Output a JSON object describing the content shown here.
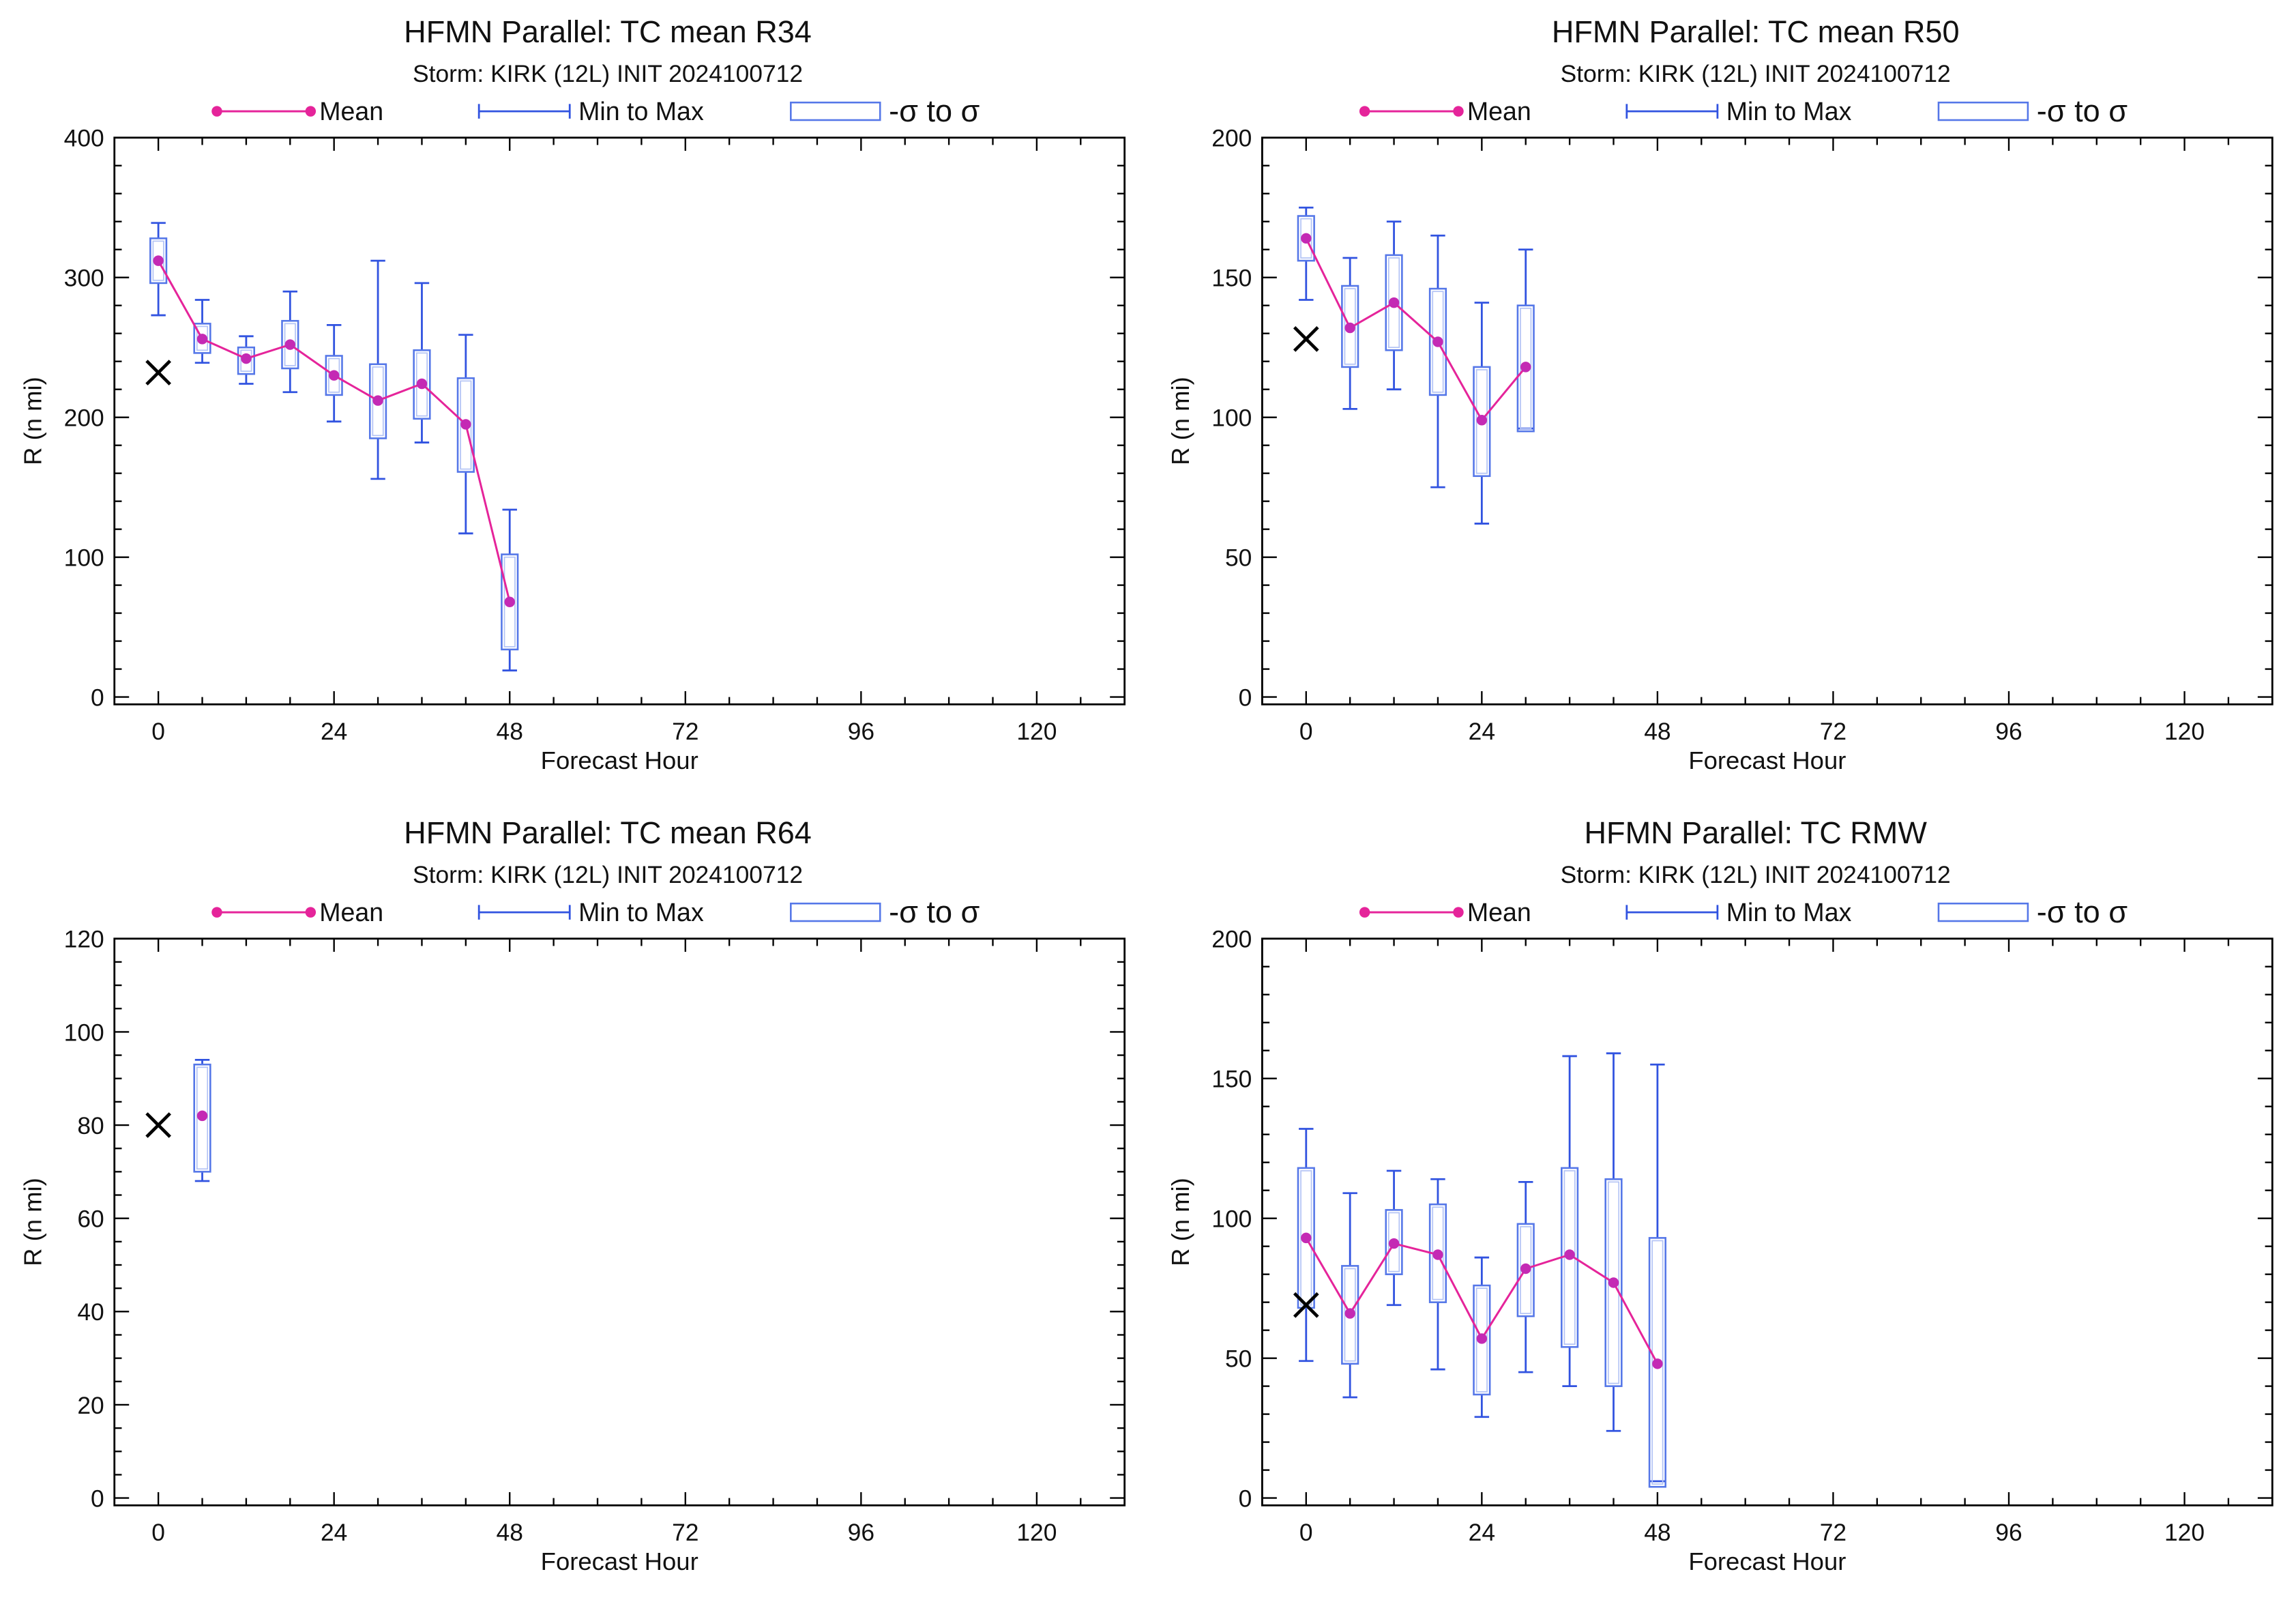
{
  "colors": {
    "mean_line": "#e5249a",
    "mean_point": "#c42ab4",
    "min_max": "#3153e0",
    "sigma_box": "#5577e8",
    "sigma_box_inner": "#b3c3f5",
    "observed": "#000000",
    "frame": "#000000"
  },
  "chart_data": [
    {
      "type": "line",
      "title": "HFMN Parallel: TC mean R34",
      "subtitle": "Storm: KIRK (12L) INIT 2024100712",
      "xlabel": "Forecast Hour",
      "ylabel": "R (n mi)",
      "xlim": [
        -6,
        132
      ],
      "ylim": [
        0,
        400
      ],
      "xticks": [
        0,
        24,
        48,
        72,
        96,
        120
      ],
      "yticks": [
        0,
        100,
        200,
        300,
        400
      ],
      "grid": false,
      "legend_position": "top",
      "x": [
        0,
        6,
        12,
        18,
        24,
        30,
        36,
        42,
        48
      ],
      "series": [
        {
          "name": "Mean",
          "values": [
            312,
            256,
            242,
            252,
            230,
            212,
            224,
            195,
            68
          ]
        },
        {
          "name": "Min to Max",
          "low": [
            273,
            239,
            224,
            218,
            197,
            156,
            182,
            117,
            19
          ],
          "high": [
            339,
            284,
            258,
            290,
            266,
            312,
            296,
            259,
            134
          ]
        },
        {
          "name": "-σ to σ",
          "low": [
            296,
            246,
            231,
            235,
            216,
            185,
            199,
            161,
            34
          ],
          "high": [
            328,
            267,
            250,
            269,
            244,
            238,
            248,
            228,
            102
          ]
        }
      ],
      "markers": {
        "symbol": "x",
        "x": [
          0
        ],
        "values": [
          232
        ]
      }
    },
    {
      "type": "line",
      "title": "HFMN Parallel: TC mean R50",
      "subtitle": "Storm: KIRK (12L) INIT 2024100712",
      "xlabel": "Forecast Hour",
      "ylabel": "R (n mi)",
      "xlim": [
        -6,
        132
      ],
      "ylim": [
        0,
        200
      ],
      "xticks": [
        0,
        24,
        48,
        72,
        96,
        120
      ],
      "yticks": [
        0,
        50,
        100,
        150,
        200
      ],
      "grid": false,
      "legend_position": "top",
      "x": [
        0,
        6,
        12,
        18,
        24,
        30
      ],
      "series": [
        {
          "name": "Mean",
          "values": [
            164,
            132,
            141,
            127,
            99,
            118
          ]
        },
        {
          "name": "Min to Max",
          "low": [
            142,
            103,
            110,
            75,
            62,
            96
          ],
          "high": [
            175,
            157,
            170,
            165,
            141,
            160
          ]
        },
        {
          "name": "-σ to σ",
          "low": [
            156,
            118,
            124,
            108,
            79,
            95
          ],
          "high": [
            172,
            147,
            158,
            146,
            118,
            140
          ]
        }
      ],
      "markers": {
        "symbol": "x",
        "x": [
          0
        ],
        "values": [
          128
        ]
      }
    },
    {
      "type": "line",
      "title": "HFMN Parallel: TC mean R64",
      "subtitle": "Storm: KIRK (12L) INIT 2024100712",
      "xlabel": "Forecast Hour",
      "ylabel": "R (n mi)",
      "xlim": [
        -6,
        132
      ],
      "ylim": [
        0,
        120
      ],
      "xticks": [
        0,
        24,
        48,
        72,
        96,
        120
      ],
      "yticks": [
        0,
        20,
        40,
        60,
        80,
        100,
        120
      ],
      "grid": false,
      "legend_position": "top",
      "x": [
        6
      ],
      "series": [
        {
          "name": "Mean",
          "values": [
            82
          ]
        },
        {
          "name": "Min to Max",
          "low": [
            68
          ],
          "high": [
            94
          ]
        },
        {
          "name": "-σ to σ",
          "low": [
            70
          ],
          "high": [
            93
          ]
        }
      ],
      "markers": {
        "symbol": "x",
        "x": [
          0
        ],
        "values": [
          80
        ]
      }
    },
    {
      "type": "line",
      "title": "HFMN Parallel: TC RMW",
      "subtitle": "Storm: KIRK (12L) INIT 2024100712",
      "xlabel": "Forecast Hour",
      "ylabel": "R (n mi)",
      "xlim": [
        -6,
        132
      ],
      "ylim": [
        0,
        200
      ],
      "xticks": [
        0,
        24,
        48,
        72,
        96,
        120
      ],
      "yticks": [
        0,
        50,
        100,
        150,
        200
      ],
      "grid": false,
      "legend_position": "top",
      "x": [
        0,
        6,
        12,
        18,
        24,
        30,
        36,
        42,
        48
      ],
      "series": [
        {
          "name": "Mean",
          "values": [
            93,
            66,
            91,
            87,
            57,
            82,
            87,
            77,
            48
          ]
        },
        {
          "name": "Min to Max",
          "low": [
            49,
            36,
            69,
            46,
            29,
            45,
            40,
            24,
            6
          ],
          "high": [
            132,
            109,
            117,
            114,
            86,
            113,
            158,
            159,
            155
          ]
        },
        {
          "name": "-σ to σ",
          "low": [
            68,
            48,
            80,
            70,
            37,
            65,
            54,
            40,
            4
          ],
          "high": [
            118,
            83,
            103,
            105,
            76,
            98,
            118,
            114,
            93
          ]
        }
      ],
      "markers": {
        "symbol": "x",
        "x": [
          0
        ],
        "values": [
          69
        ]
      }
    }
  ]
}
